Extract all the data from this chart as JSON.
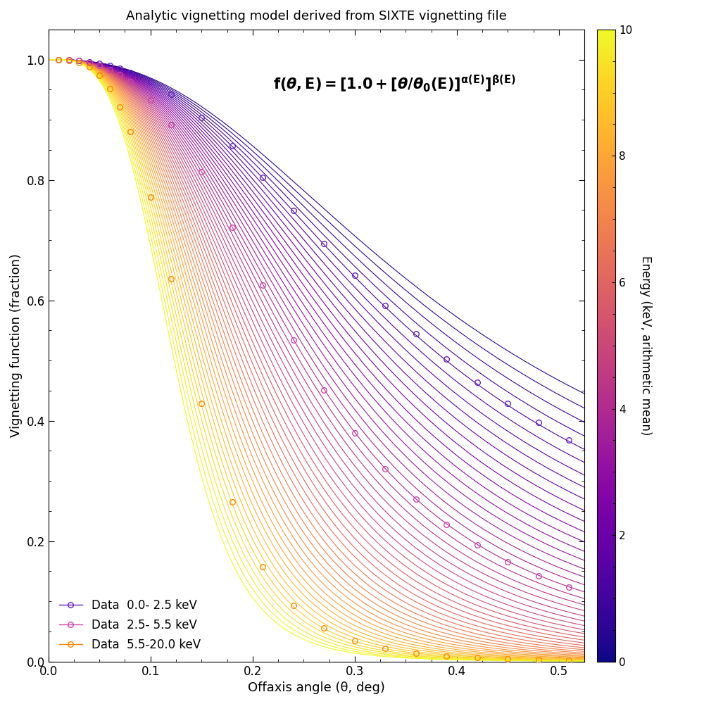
{
  "title": "Analytic vignetting model derived from SIXTE vignetting file",
  "xlabel": "Offaxis angle (θ, deg)",
  "ylabel": "Vignetting function (fraction)",
  "cbar_label": "Energy (keV, arithmetic mean)",
  "xlim": [
    0,
    0.525
  ],
  "ylim": [
    0,
    1.05
  ],
  "energy_min": 0.5,
  "energy_max": 10.0,
  "n_curves": 50,
  "theta_max": 0.525,
  "n_theta": 500,
  "cmap": "plasma",
  "legend_entries": [
    {
      "label": "Data  0.0- 2.5 keV",
      "color": "#6622bb"
    },
    {
      "label": "Data  2.5- 5.5 keV",
      "color": "#cc44aa"
    },
    {
      "label": "Data  5.5-20.0 keV",
      "color": "#ff8800"
    }
  ],
  "data_theta_markers": [
    0.01,
    0.02,
    0.03,
    0.04,
    0.05,
    0.06,
    0.07,
    0.08,
    0.1,
    0.12,
    0.15,
    0.18,
    0.21,
    0.24,
    0.27,
    0.3,
    0.33,
    0.36,
    0.39,
    0.42,
    0.45,
    0.48,
    0.51
  ]
}
